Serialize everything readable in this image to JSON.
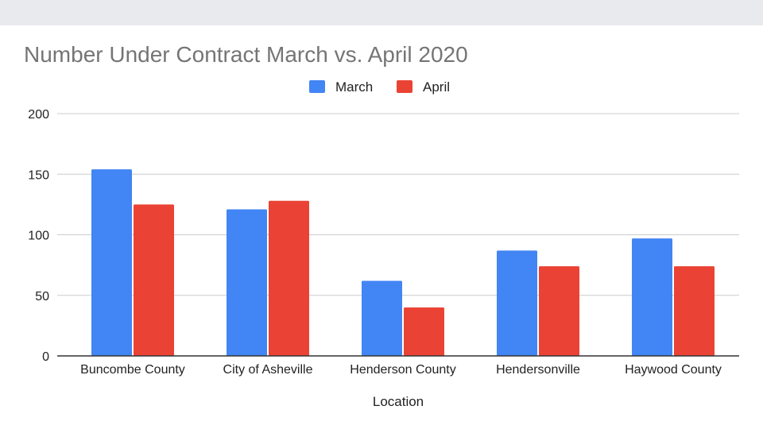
{
  "chart_data": {
    "type": "bar",
    "title": "Number Under Contract March vs. April 2020",
    "xlabel": "Location",
    "ylabel": "",
    "categories": [
      "Buncombe County",
      "City of Asheville",
      "Henderson County",
      "Hendersonville",
      "Haywood County"
    ],
    "series": [
      {
        "name": "March",
        "color": "#4285f4",
        "values": [
          154,
          121,
          62,
          87,
          97
        ]
      },
      {
        "name": "April",
        "color": "#ea4335",
        "values": [
          125,
          128,
          40,
          74,
          74
        ]
      }
    ],
    "ylim": [
      0,
      200
    ],
    "yticks": [
      0,
      50,
      100,
      150,
      200
    ],
    "grid": true,
    "legend_position": "top-center"
  }
}
